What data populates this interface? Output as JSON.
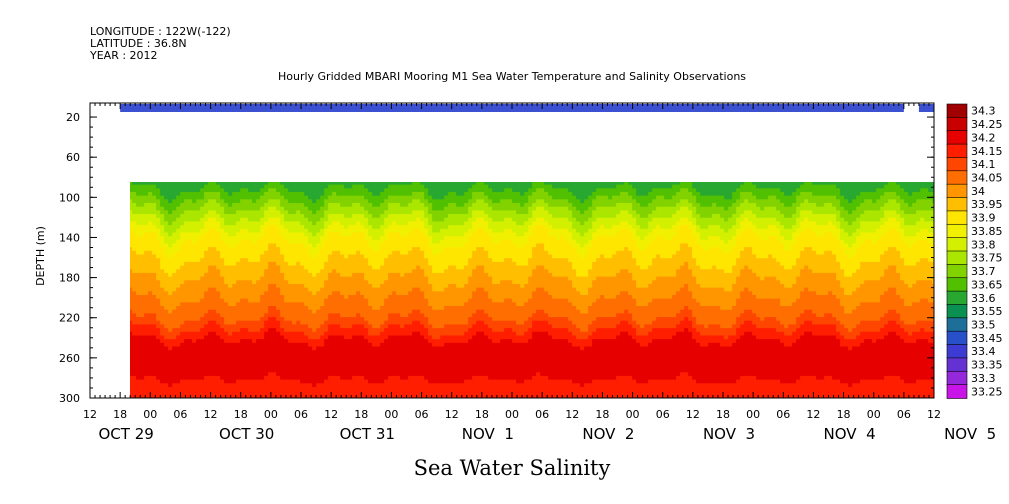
{
  "header": {
    "longitude": "LONGITUDE : 122W(-122)",
    "latitude": "LATITUDE : 36.8N",
    "year": "YEAR : 2012"
  },
  "title": "Hourly Gridded MBARI Mooring M1 Sea Water Temperature and Salinity Observations",
  "variable_title": "Sea Water Salinity",
  "chart_data": {
    "type": "heatmap",
    "title": "Hourly Gridded MBARI Mooring M1 Sea Water Temperature and Salinity Observations",
    "xlabel": "",
    "ylabel": "DEPTH (m)",
    "x_range_hours_labels": [
      "OCT 29 12",
      "NOV 5 12"
    ],
    "x_hour_ticks": [
      "12",
      "18",
      "00",
      "06",
      "12",
      "18",
      "00",
      "06",
      "12",
      "18",
      "00",
      "06",
      "12",
      "18",
      "00",
      "06",
      "12",
      "18",
      "00",
      "06",
      "12",
      "18",
      "00",
      "06",
      "12",
      "18",
      "00",
      "06",
      "12"
    ],
    "x_date_labels": [
      "OCT 29",
      "OCT 30",
      "OCT 31",
      "NOV  1",
      "NOV  2",
      "NOV  3",
      "NOV  4",
      "NOV  5"
    ],
    "y_ticks": [
      20,
      60,
      100,
      140,
      180,
      220,
      260,
      300
    ],
    "ylim": [
      300,
      0
    ],
    "data_start": "OCT 29 18",
    "surface_band": {
      "depth_m": 1,
      "value_range": "33.4-33.45",
      "gaps": [
        "NOV 5 00"
      ]
    },
    "no_data_depth_range_m": [
      5,
      80
    ],
    "profile_by_depth": {
      "depths_m": [
        80,
        100,
        120,
        140,
        160,
        180,
        200,
        220,
        240,
        260,
        280,
        300
      ],
      "values": [
        33.6,
        33.7,
        33.8,
        33.9,
        33.95,
        34.0,
        34.05,
        34.1,
        34.2,
        34.25,
        34.2,
        34.15
      ]
    },
    "colorbar": {
      "levels": [
        "34.3",
        "34.25",
        "34.2",
        "34.15",
        "34.1",
        "34.05",
        "34",
        "33.95",
        "33.9",
        "33.85",
        "33.8",
        "33.75",
        "33.7",
        "33.65",
        "33.6",
        "33.55",
        "33.5",
        "33.45",
        "33.4",
        "33.35",
        "33.3",
        "33.25"
      ],
      "colors": [
        "#a00000",
        "#c80000",
        "#e60000",
        "#ff1e00",
        "#ff4600",
        "#ff6e00",
        "#ff9600",
        "#ffbe00",
        "#ffe600",
        "#f0f000",
        "#d2f000",
        "#aae600",
        "#82d200",
        "#50c000",
        "#28a830",
        "#0a9050",
        "#1e6e9a",
        "#2850c8",
        "#3c3cd2",
        "#6432d2",
        "#9628dc",
        "#c814e6"
      ]
    }
  }
}
